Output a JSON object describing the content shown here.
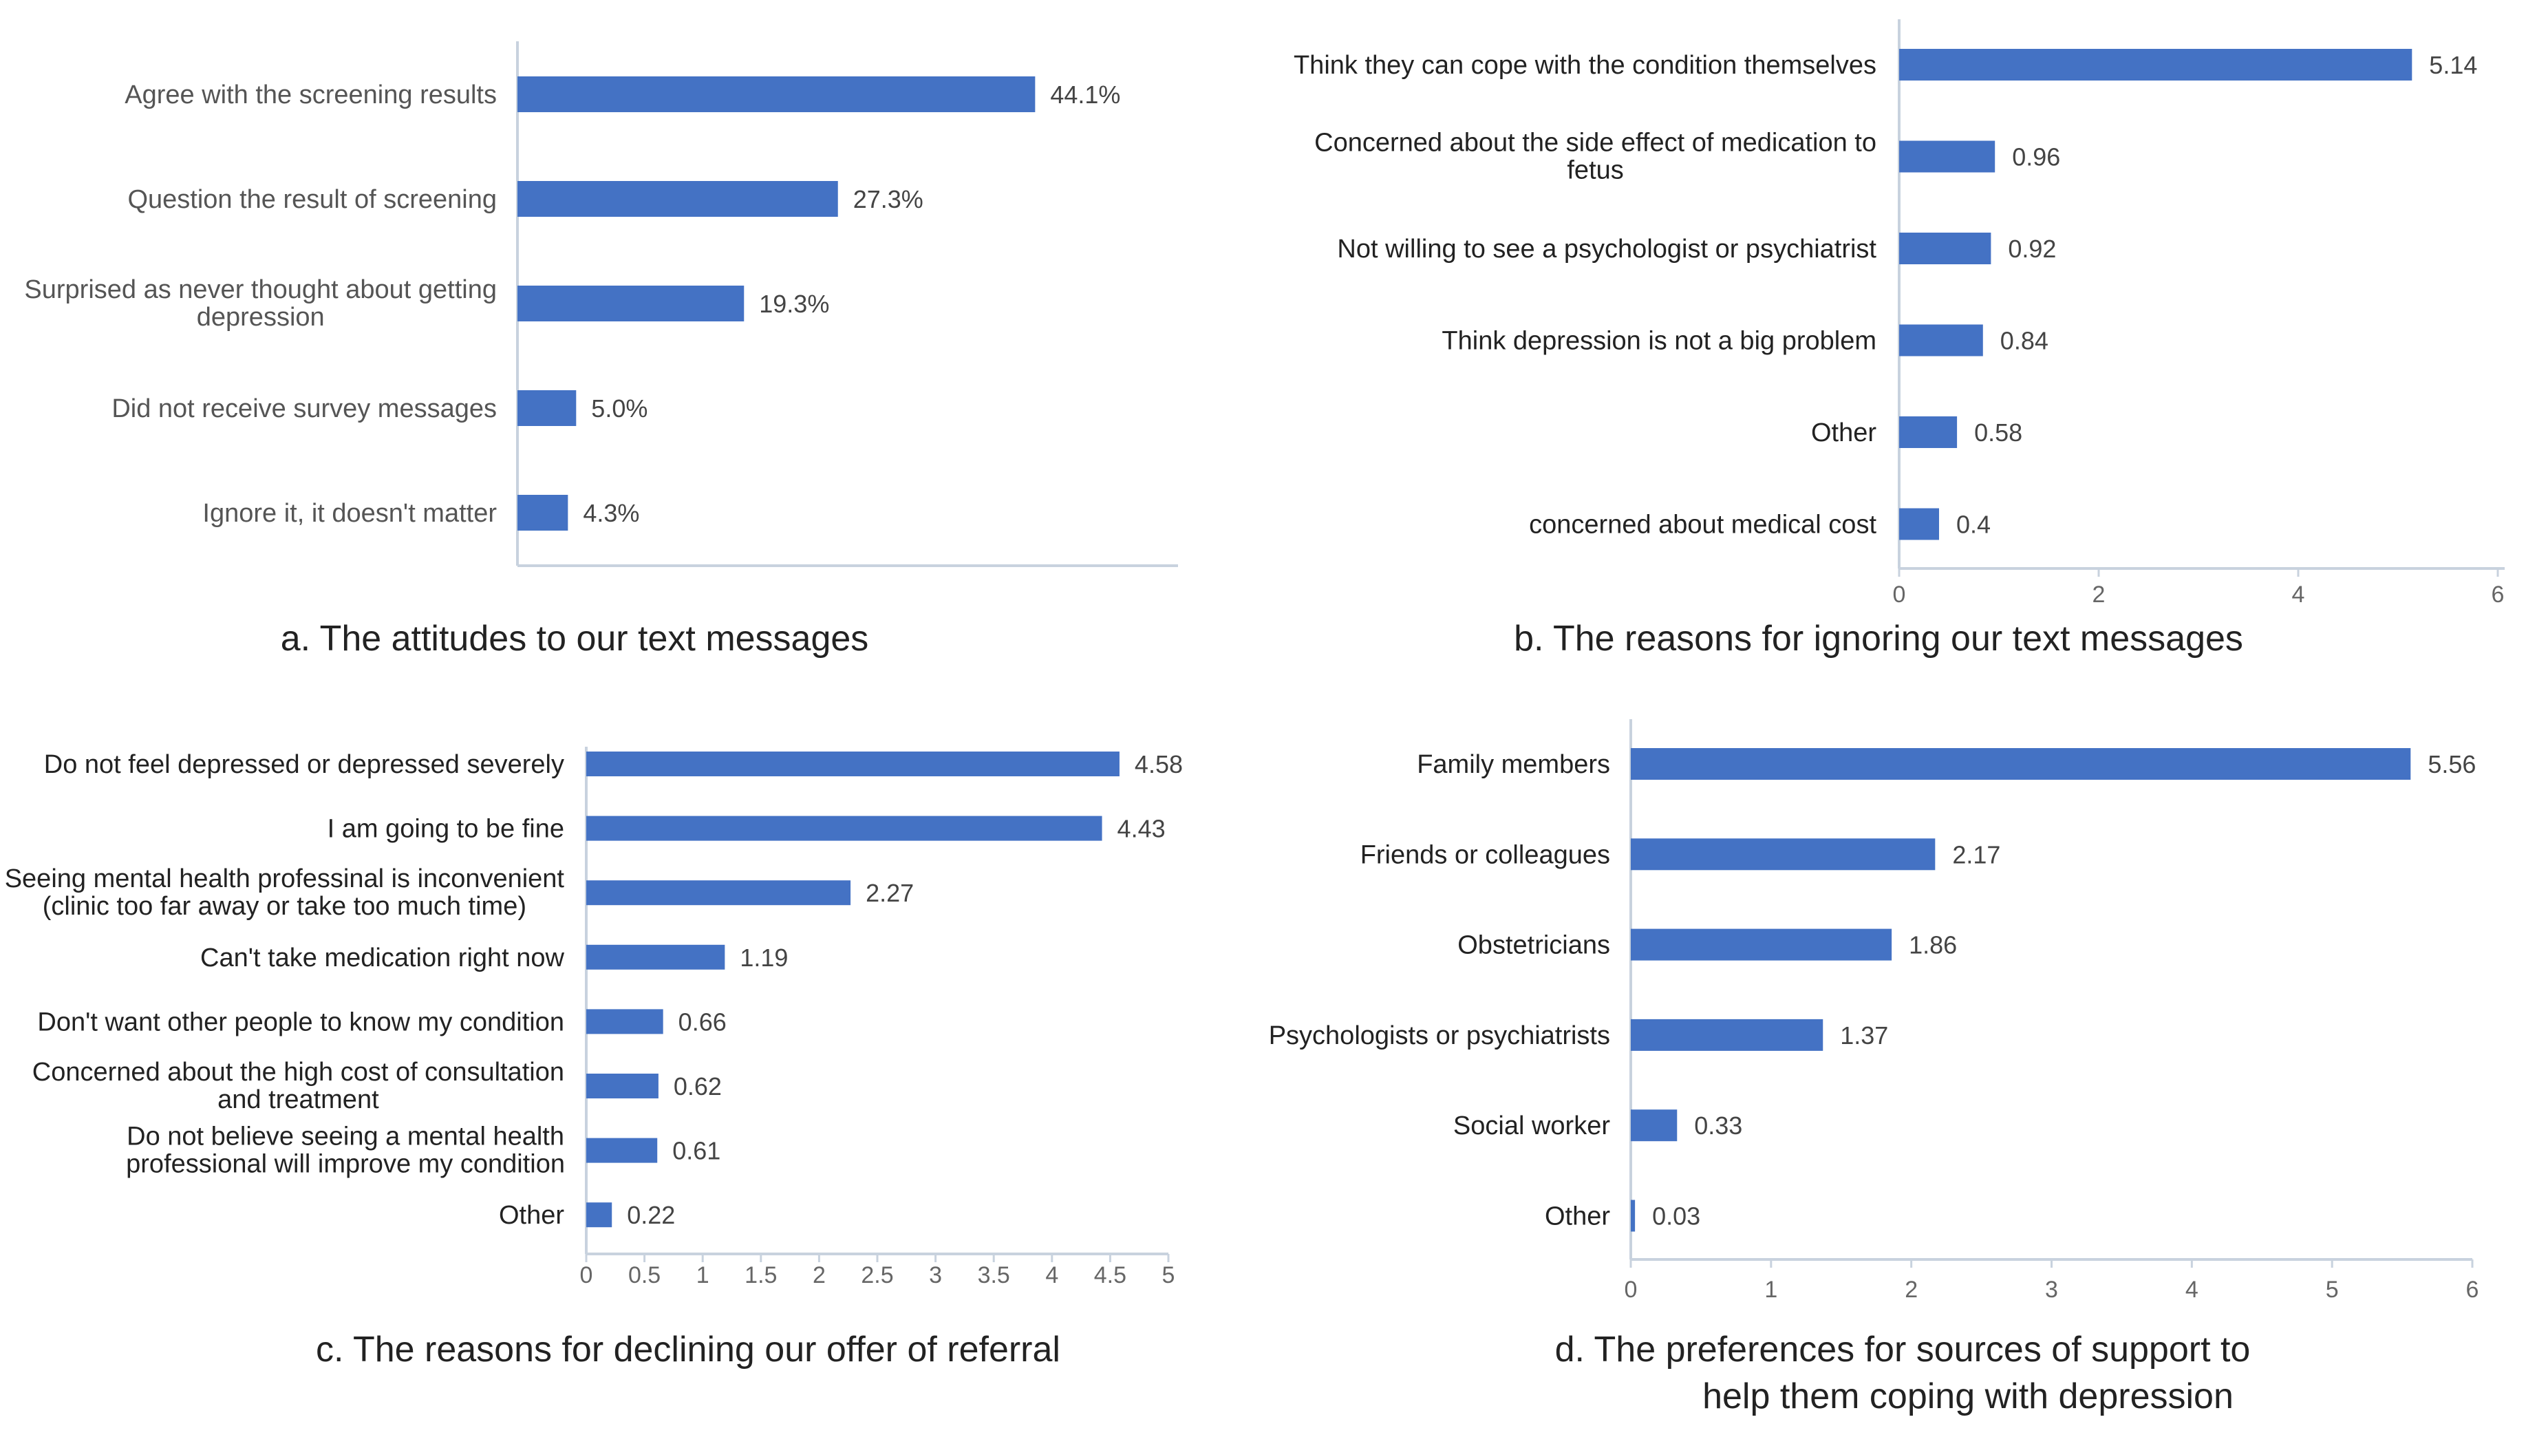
{
  "colors": {
    "bar": "#4472c4",
    "axis": "#c8d2de"
  },
  "chart_data": [
    {
      "panel": "a",
      "type": "bar",
      "orientation": "horizontal",
      "categories": [
        "Agree with the screening results",
        "Question the result of screening",
        "Surprised as never thought about getting depression",
        "Did not receive survey messages",
        "Ignore it, it doesn't matter"
      ],
      "values": [
        44.1,
        27.3,
        19.3,
        5.0,
        4.3
      ],
      "value_labels": [
        "44.1%",
        "27.3%",
        "19.3%",
        "5.0%",
        "4.3%"
      ],
      "unit": "%",
      "xlim": [
        0,
        50
      ],
      "caption": "a. The attitudes to our text messages"
    },
    {
      "panel": "b",
      "type": "bar",
      "orientation": "horizontal",
      "categories": [
        "Think they can cope with the condition themselves",
        "Concerned about the side effect of medication to fetus",
        "Not willing to see a psychologist or psychiatrist",
        "Think depression is not a big problem",
        "Other",
        "concerned about medical cost"
      ],
      "values": [
        5.14,
        0.96,
        0.92,
        0.84,
        0.58,
        0.4
      ],
      "value_labels": [
        "5.14",
        "0.96",
        "0.92",
        "0.84",
        "0.58",
        "0.4"
      ],
      "xlim": [
        0,
        6
      ],
      "xticks": [
        "0",
        "2",
        "4",
        "6"
      ],
      "caption": "b. The reasons for ignoring our text messages"
    },
    {
      "panel": "c",
      "type": "bar",
      "orientation": "horizontal",
      "categories": [
        "Do not feel depressed or depressed severely",
        "I am going to be fine",
        "Seeing mental health professinal is inconvenient (clinic too far away or take too much time)",
        "Can't take medication right now",
        "Don't want other people to know my condition",
        "Concerned about the high cost of consultation and treatment",
        "Do not believe seeing a mental health professional will improve my condition",
        "Other"
      ],
      "values": [
        4.58,
        4.43,
        2.27,
        1.19,
        0.66,
        0.62,
        0.61,
        0.22
      ],
      "value_labels": [
        "4.58",
        "4.43",
        "2.27",
        "1.19",
        "0.66",
        "0.62",
        "0.61",
        "0.22"
      ],
      "xlim": [
        0,
        5
      ],
      "xticks": [
        "0",
        "0.5",
        "1",
        "1.5",
        "2",
        "2.5",
        "3",
        "3.5",
        "4",
        "4.5",
        "5"
      ],
      "caption": "c. The reasons for declining our offer of referral"
    },
    {
      "panel": "d",
      "type": "bar",
      "orientation": "horizontal",
      "categories": [
        "Family members",
        "Friends or colleagues",
        "Obstetricians",
        "Psychologists or psychiatrists",
        "Social worker",
        "Other"
      ],
      "values": [
        5.56,
        2.17,
        1.86,
        1.37,
        0.33,
        0.03
      ],
      "value_labels": [
        "5.56",
        "2.17",
        "1.86",
        "1.37",
        "0.33",
        "0.03"
      ],
      "xlim": [
        0,
        6
      ],
      "xticks": [
        "0",
        "1",
        "2",
        "3",
        "4",
        "5",
        "6"
      ],
      "caption": "d. The preferences for sources of support to help them coping with depression"
    }
  ]
}
